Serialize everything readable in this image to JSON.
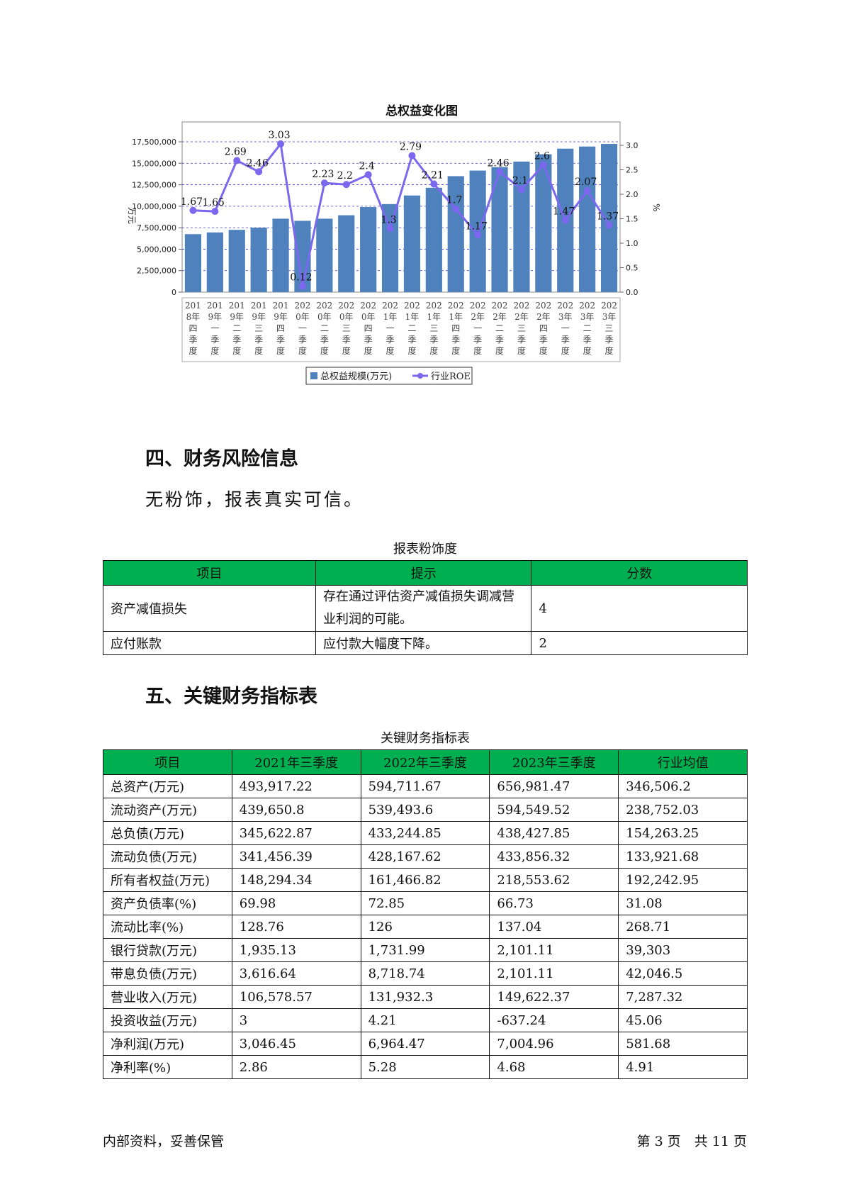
{
  "chart": {
    "title": "总权益变化图",
    "legend": {
      "bar_label": "总权益规模(万元)",
      "line_label": "行业ROE"
    }
  },
  "chart_data": {
    "type": "bar",
    "title": "总权益变化图",
    "categories": [
      "2018年四季度",
      "2019年一季度",
      "2019年二季度",
      "2019年三季度",
      "2019年四季度",
      "2020年一季度",
      "2020年二季度",
      "2020年三季度",
      "2020年四季度",
      "2021年一季度",
      "2021年二季度",
      "2021年三季度",
      "2021年四季度",
      "2022年一季度",
      "2022年二季度",
      "2022年三季度",
      "2022年四季度",
      "2023年一季度",
      "2023年二季度",
      "2023年三季度"
    ],
    "ylabel": "万元",
    "y2label": "%",
    "ylim": [
      0,
      17500000
    ],
    "y2lim": [
      0,
      3.0
    ],
    "yticks": [
      "0",
      "2,500,000",
      "5,000,000",
      "7,500,000",
      "10,000,000",
      "12,500,000",
      "15,000,000",
      "17,500,000"
    ],
    "y2ticks": [
      "0.0",
      "0.5",
      "1.0",
      "1.5",
      "2.0",
      "2.5",
      "3.0"
    ],
    "series": [
      {
        "name": "总权益规模(万元)",
        "type": "bar",
        "color": "#4f81bd",
        "values": [
          6750000,
          6950000,
          7250000,
          7500000,
          8550000,
          8300000,
          8550000,
          8950000,
          9900000,
          10250000,
          11250000,
          12150000,
          13500000,
          14150000,
          14550000,
          15200000,
          16050000,
          16700000,
          16950000,
          17250000
        ]
      },
      {
        "name": "行业ROE",
        "type": "line",
        "color": "#7b68ee",
        "values": [
          1.67,
          1.65,
          2.69,
          2.46,
          3.03,
          0.12,
          2.23,
          2.2,
          2.4,
          1.3,
          2.79,
          2.21,
          1.7,
          1.17,
          2.46,
          2.1,
          2.6,
          1.47,
          2.07,
          1.37
        ],
        "labels": [
          "1.67",
          "1.65",
          "2.69",
          "2.46",
          "3.03",
          "0.12",
          "2.23",
          "2.2",
          "2.4",
          "1.3",
          "2.79",
          "2.21",
          "1.7",
          "1.17",
          "2.46",
          "2.1",
          "2.6",
          "1.47",
          "2.07",
          "1.37"
        ]
      }
    ]
  },
  "section4": {
    "heading": "四、财务风险信息",
    "text": "无粉饰，报表真实可信。"
  },
  "risk_table": {
    "caption": "报表粉饰度",
    "headers": [
      "项目",
      "提示",
      "分数"
    ],
    "rows": [
      [
        "资产减值损失",
        "存在通过评估资产减值损失调减营业利润的可能。",
        "4"
      ],
      [
        "应付账款",
        "应付款大幅度下降。",
        "2"
      ]
    ],
    "header_color": "#00b050"
  },
  "section5": {
    "heading": "五、关键财务指标表"
  },
  "kpi_table": {
    "caption": "关键财务指标表",
    "headers": [
      "项目",
      "2021年三季度",
      "2022年三季度",
      "2023年三季度",
      "行业均值"
    ],
    "rows": [
      [
        "总资产(万元)",
        "493,917.22",
        "594,711.67",
        "656,981.47",
        "346,506.2"
      ],
      [
        "流动资产(万元)",
        "439,650.8",
        "539,493.6",
        "594,549.52",
        "238,752.03"
      ],
      [
        "总负债(万元)",
        "345,622.87",
        "433,244.85",
        "438,427.85",
        "154,263.25"
      ],
      [
        "流动负债(万元)",
        "341,456.39",
        "428,167.62",
        "433,856.32",
        "133,921.68"
      ],
      [
        "所有者权益(万元)",
        "148,294.34",
        "161,466.82",
        "218,553.62",
        "192,242.95"
      ],
      [
        "资产负债率(%)",
        "69.98",
        "72.85",
        "66.73",
        "31.08"
      ],
      [
        "流动比率(%)",
        "128.76",
        "126",
        "137.04",
        "268.71"
      ],
      [
        "银行贷款(万元)",
        "1,935.13",
        "1,731.99",
        "2,101.11",
        "39,303"
      ],
      [
        "带息负债(万元)",
        "3,616.64",
        "8,718.74",
        "2,101.11",
        "42,046.5"
      ],
      [
        "营业收入(万元)",
        "106,578.57",
        "131,932.3",
        "149,622.37",
        "7,287.32"
      ],
      [
        "投资收益(万元)",
        "3",
        "4.21",
        "-637.24",
        "45.06"
      ],
      [
        "净利润(万元)",
        "3,046.45",
        "6,964.47",
        "7,004.96",
        "581.68"
      ],
      [
        "净利率(%)",
        "2.86",
        "5.28",
        "4.68",
        "4.91"
      ]
    ]
  },
  "footer": {
    "left": "内部资料，妥善保管",
    "right": "第 3 页　共 11 页"
  }
}
